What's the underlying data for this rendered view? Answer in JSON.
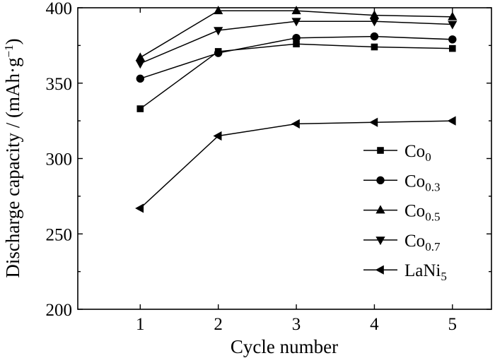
{
  "chart_data": {
    "type": "line",
    "xlabel": "Cycle number",
    "ylabel": "Discharge capacity / (mAh·g⁻¹)",
    "ylabel_base": "Discharge capacity / (mAh·g",
    "ylabel_sup": "−1",
    "ylabel_close": ")",
    "x": [
      1,
      2,
      3,
      4,
      5
    ],
    "xlim": [
      0.2,
      5.5
    ],
    "ylim": [
      200,
      400
    ],
    "xticks": [
      "1",
      "2",
      "3",
      "4",
      "5"
    ],
    "yticks": [
      "200",
      "250",
      "300",
      "350",
      "400"
    ],
    "grid": false,
    "legend_position": "right",
    "series": [
      {
        "name": "Co0",
        "label_base": "Co",
        "label_sub": "0",
        "marker": "square",
        "values": [
          333,
          371,
          376,
          374,
          373
        ]
      },
      {
        "name": "Co0.3",
        "label_base": "Co",
        "label_sub": "0.3",
        "marker": "circle",
        "values": [
          353,
          370,
          380,
          381,
          379
        ]
      },
      {
        "name": "Co0.5",
        "label_base": "Co",
        "label_sub": "0.5",
        "marker": "triangle-up",
        "values": [
          367,
          398,
          398,
          395,
          394
        ]
      },
      {
        "name": "Co0.7",
        "label_base": "Co",
        "label_sub": "0.7",
        "marker": "triangle-down",
        "values": [
          363,
          385,
          391,
          391,
          389
        ]
      },
      {
        "name": "LaNi5",
        "label_base": "LaNi",
        "label_sub": "5",
        "marker": "triangle-left",
        "values": [
          267,
          315,
          323,
          324,
          325
        ]
      }
    ]
  }
}
